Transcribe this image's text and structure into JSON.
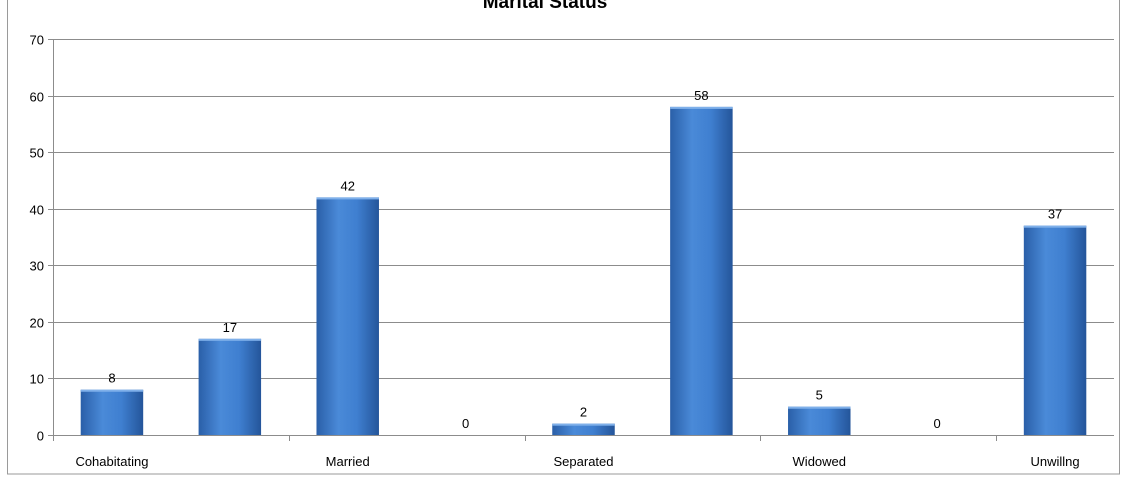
{
  "chart_data": {
    "type": "bar",
    "title": "Marital Status",
    "categories": [
      "Cohabitating",
      "",
      "Married",
      "",
      "Separated",
      "",
      "Widowed",
      "",
      "Unwillng"
    ],
    "values": [
      8,
      17,
      42,
      0,
      2,
      58,
      5,
      0,
      37
    ],
    "data_labels": [
      "8",
      "17",
      "42",
      "0",
      "2",
      "58",
      "5",
      "0",
      "37"
    ],
    "ylim": [
      0,
      70
    ],
    "yticks": [
      0,
      10,
      20,
      30,
      40,
      50,
      60,
      70
    ],
    "grid": true,
    "bar_color": "#3a78c8",
    "xlabel": "",
    "ylabel": ""
  }
}
